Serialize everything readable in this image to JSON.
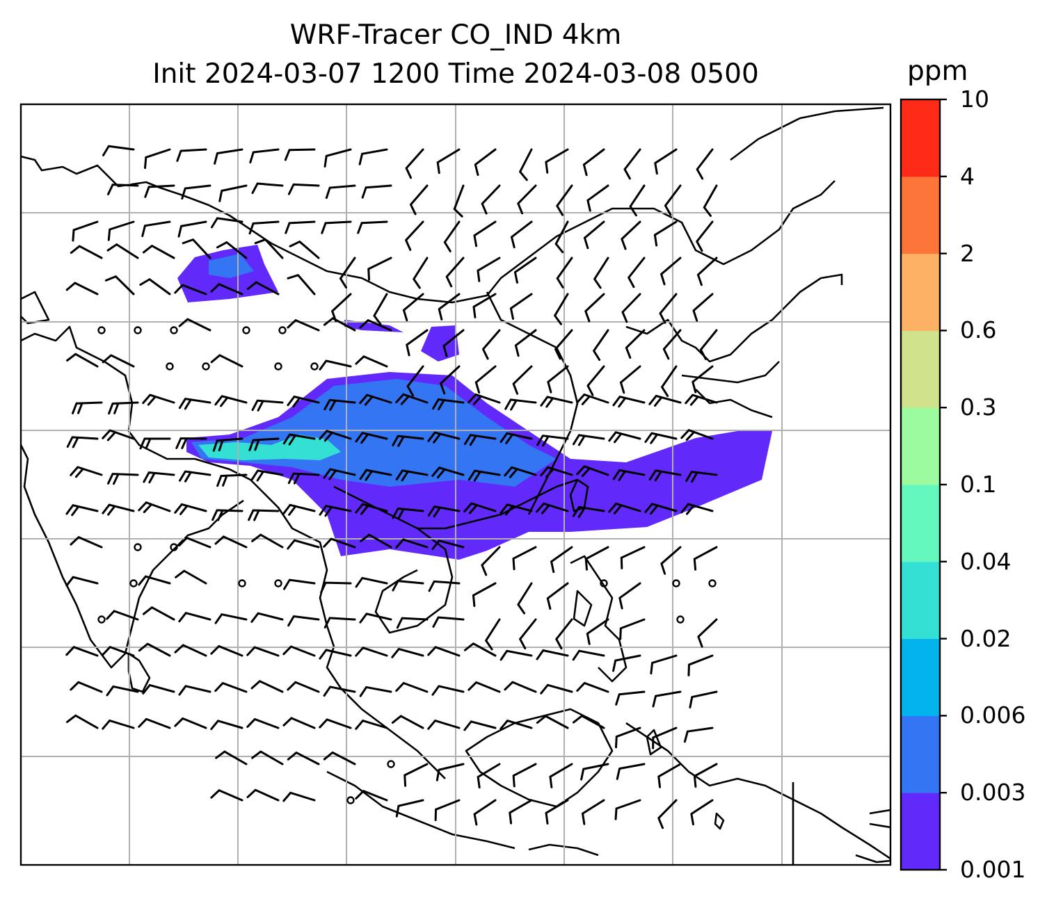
{
  "title_line1": "WRF-Tracer CO_IND 4km",
  "title_line2": "Init 2024-03-07 1200 Time 2024-03-08 0500",
  "colorbar": {
    "unit": "ppm",
    "levels": [
      "0.001",
      "0.003",
      "0.006",
      "0.02",
      "0.04",
      "0.1",
      "0.3",
      "0.6",
      "2",
      "4",
      "10"
    ],
    "colors": [
      "#6229fb",
      "#3375f2",
      "#02b3ec",
      "#34dfd4",
      "#64f8be",
      "#9cfa9f",
      "#d0e28b",
      "#fdb165",
      "#fd7439",
      "#fe2b18"
    ]
  },
  "map": {
    "plume_colors": {
      "outer": "#6229fb",
      "mid": "#3375f2",
      "inner": "#34dfd4"
    },
    "coastline_color": "#000000",
    "grid_color": "#b0b0b0"
  }
}
